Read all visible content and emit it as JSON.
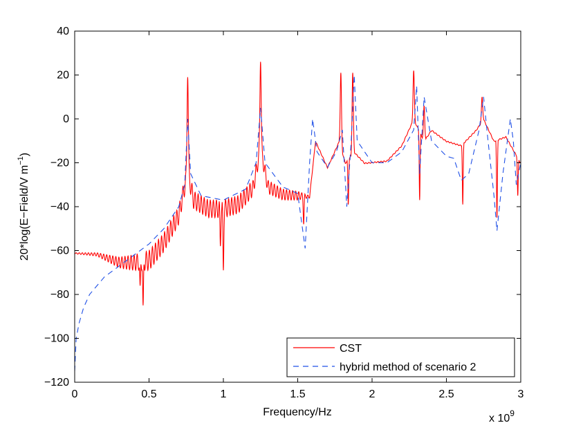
{
  "chart_data": {
    "type": "line",
    "xlabel": "Frequency/Hz",
    "x_exponent": {
      "base": "x 10",
      "power": "9"
    },
    "ylabel": {
      "main": "20*log(E−Field/V m",
      "sup": "−1",
      "close": ")"
    },
    "xlim": [
      0,
      3
    ],
    "ylim": [
      -120,
      40
    ],
    "x_ticks": [
      0,
      0.5,
      1,
      1.5,
      2,
      2.5,
      3
    ],
    "x_tick_labels": [
      "0",
      "0.5",
      "1",
      "1.5",
      "2",
      "2.5",
      "3"
    ],
    "y_ticks": [
      -120,
      -100,
      -80,
      -60,
      -40,
      -20,
      0,
      20,
      40
    ],
    "y_tick_labels": [
      "−120",
      "−100",
      "−80",
      "−60",
      "−40",
      "−20",
      "0",
      "20",
      "40"
    ],
    "grid": false,
    "legend_position": "bottom-right",
    "series": [
      {
        "name": "CST",
        "color": "#ff0000",
        "style": "solid",
        "envelope": [
          [
            0,
            -61
          ],
          [
            0.15,
            -61
          ],
          [
            0.3,
            -63
          ],
          [
            0.4,
            -62
          ],
          [
            0.5,
            -60
          ],
          [
            0.6,
            -52
          ],
          [
            0.7,
            -40
          ],
          [
            0.76,
            -20
          ],
          [
            0.8,
            -33
          ],
          [
            0.9,
            -37
          ],
          [
            1.0,
            -37
          ],
          [
            1.1,
            -35
          ],
          [
            1.2,
            -28
          ],
          [
            1.25,
            -10
          ],
          [
            1.3,
            -28
          ],
          [
            1.4,
            -32
          ],
          [
            1.5,
            -33
          ],
          [
            1.58,
            -35
          ],
          [
            1.62,
            -10
          ],
          [
            1.7,
            -22
          ],
          [
            1.78,
            -10
          ],
          [
            1.82,
            -20
          ],
          [
            1.88,
            -15
          ],
          [
            1.95,
            -20
          ],
          [
            2.1,
            -19
          ],
          [
            2.2,
            -12
          ],
          [
            2.28,
            0
          ],
          [
            2.35,
            -10
          ],
          [
            2.4,
            -5
          ],
          [
            2.5,
            -10
          ],
          [
            2.6,
            -12
          ],
          [
            2.7,
            -5
          ],
          [
            2.75,
            0
          ],
          [
            2.82,
            -10
          ],
          [
            2.9,
            -8
          ],
          [
            3.0,
            -20
          ]
        ],
        "peaks": [
          [
            0.76,
            19
          ],
          [
            1.25,
            26
          ],
          [
            1.79,
            21
          ],
          [
            1.87,
            21
          ],
          [
            2.28,
            22
          ],
          [
            2.74,
            10
          ],
          [
            2.35,
            6
          ]
        ],
        "dips": [
          [
            0.46,
            -85
          ],
          [
            0.44,
            -76
          ],
          [
            1.0,
            -69
          ],
          [
            0.98,
            -58
          ],
          [
            1.54,
            -48
          ],
          [
            1.84,
            -39
          ],
          [
            2.32,
            -37
          ],
          [
            2.61,
            -39
          ],
          [
            2.84,
            -45
          ],
          [
            2.98,
            -35
          ]
        ],
        "ripple": [
          [
            0,
            0.5
          ],
          [
            0.15,
            1.5
          ],
          [
            0.35,
            6
          ],
          [
            0.5,
            9
          ],
          [
            0.7,
            8
          ],
          [
            0.9,
            8
          ],
          [
            1.1,
            8
          ],
          [
            1.3,
            6
          ],
          [
            1.5,
            4
          ],
          [
            1.55,
            2
          ],
          [
            1.6,
            0.5
          ],
          [
            3.0,
            0.5
          ]
        ]
      },
      {
        "name": "hybrid method of scenario 2",
        "color": "#1e4fe6",
        "style": "dashed",
        "points": [
          [
            0,
            -115
          ],
          [
            0.01,
            -100
          ],
          [
            0.03,
            -93
          ],
          [
            0.06,
            -86
          ],
          [
            0.1,
            -80
          ],
          [
            0.2,
            -72
          ],
          [
            0.3,
            -67
          ],
          [
            0.4,
            -62
          ],
          [
            0.5,
            -57
          ],
          [
            0.6,
            -50
          ],
          [
            0.7,
            -40
          ],
          [
            0.74,
            -30
          ],
          [
            0.76,
            0
          ],
          [
            0.78,
            -25
          ],
          [
            0.85,
            -35
          ],
          [
            1.0,
            -37
          ],
          [
            1.15,
            -32
          ],
          [
            1.22,
            -20
          ],
          [
            1.25,
            5
          ],
          [
            1.28,
            -20
          ],
          [
            1.4,
            -31
          ],
          [
            1.5,
            -34
          ],
          [
            1.55,
            -59
          ],
          [
            1.58,
            -20
          ],
          [
            1.6,
            0
          ],
          [
            1.63,
            -15
          ],
          [
            1.7,
            -22
          ],
          [
            1.76,
            -15
          ],
          [
            1.8,
            -5
          ],
          [
            1.83,
            -40
          ],
          [
            1.86,
            -10
          ],
          [
            1.88,
            20
          ],
          [
            1.9,
            -10
          ],
          [
            2.0,
            -20
          ],
          [
            2.1,
            -20
          ],
          [
            2.2,
            -15
          ],
          [
            2.28,
            -5
          ],
          [
            2.3,
            15
          ],
          [
            2.32,
            -25
          ],
          [
            2.35,
            10
          ],
          [
            2.4,
            -10
          ],
          [
            2.5,
            -17
          ],
          [
            2.55,
            -18
          ],
          [
            2.6,
            -28
          ],
          [
            2.65,
            -25
          ],
          [
            2.72,
            -5
          ],
          [
            2.75,
            10
          ],
          [
            2.78,
            -10
          ],
          [
            2.82,
            -35
          ],
          [
            2.84,
            -51
          ],
          [
            2.88,
            -25
          ],
          [
            2.93,
            0
          ],
          [
            2.95,
            -10
          ],
          [
            2.97,
            -30
          ],
          [
            3.0,
            -20
          ]
        ]
      }
    ]
  }
}
